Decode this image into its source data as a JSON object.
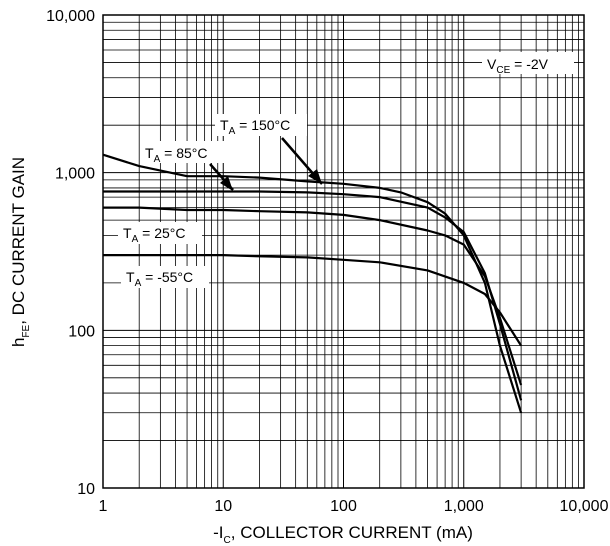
{
  "chart_data": {
    "type": "line",
    "x_scale": "log",
    "y_scale": "log",
    "xlim": [
      1,
      10000
    ],
    "ylim": [
      10,
      10000
    ],
    "grid": true,
    "legend": "none",
    "xlabel": {
      "prefix": "-I",
      "sub": "C",
      "rest": ", COLLECTOR CURRENT (mA)"
    },
    "ylabel": {
      "prefix": "h",
      "sub": "FE",
      "rest": ", DC CURRENT GAIN"
    },
    "x_tick_values": [
      1,
      10,
      100,
      1000,
      10000
    ],
    "x_tick_labels": [
      "1",
      "10",
      "100",
      "1,000",
      "10,000"
    ],
    "y_tick_values": [
      10,
      100,
      1000,
      10000
    ],
    "y_tick_labels": [
      "10",
      "100",
      "1,000",
      "10,000"
    ],
    "condition": {
      "prefix": "V",
      "sub": "CE",
      "rest": " = -2V"
    },
    "series": [
      {
        "name": "T_A = 150°C",
        "label_prefix": "T",
        "label_sub": "A",
        "label_rest": " = 150°C",
        "x": [
          1,
          2,
          5,
          10,
          20,
          50,
          100,
          200,
          300,
          500,
          700,
          1000,
          1500,
          2000,
          3000
        ],
        "y": [
          1300,
          1100,
          950,
          950,
          930,
          880,
          850,
          800,
          750,
          650,
          550,
          400,
          200,
          80,
          30
        ]
      },
      {
        "name": "T_A = 85°C",
        "label_prefix": "T",
        "label_sub": "A",
        "label_rest": " = 85°C",
        "x": [
          1,
          2,
          5,
          10,
          20,
          50,
          100,
          200,
          500,
          700,
          1000,
          1500,
          2000,
          3000
        ],
        "y": [
          760,
          760,
          760,
          760,
          760,
          750,
          730,
          700,
          600,
          520,
          420,
          230,
          110,
          36
        ]
      },
      {
        "name": "T_A = 25°C",
        "label_prefix": "T",
        "label_sub": "A",
        "label_rest": " = 25°C",
        "x": [
          1,
          2,
          5,
          10,
          20,
          50,
          100,
          200,
          500,
          700,
          1000,
          1500,
          2000,
          3000
        ],
        "y": [
          600,
          600,
          580,
          580,
          570,
          560,
          540,
          500,
          430,
          400,
          350,
          220,
          120,
          45
        ]
      },
      {
        "name": "T_A = -55°C",
        "label_prefix": "T",
        "label_sub": "A",
        "label_rest": " = -55°C",
        "x": [
          1,
          2,
          5,
          10,
          20,
          50,
          100,
          200,
          500,
          1000,
          1500,
          2000,
          3000
        ],
        "y": [
          300,
          300,
          300,
          300,
          295,
          290,
          280,
          270,
          240,
          200,
          170,
          130,
          80
        ]
      }
    ]
  }
}
